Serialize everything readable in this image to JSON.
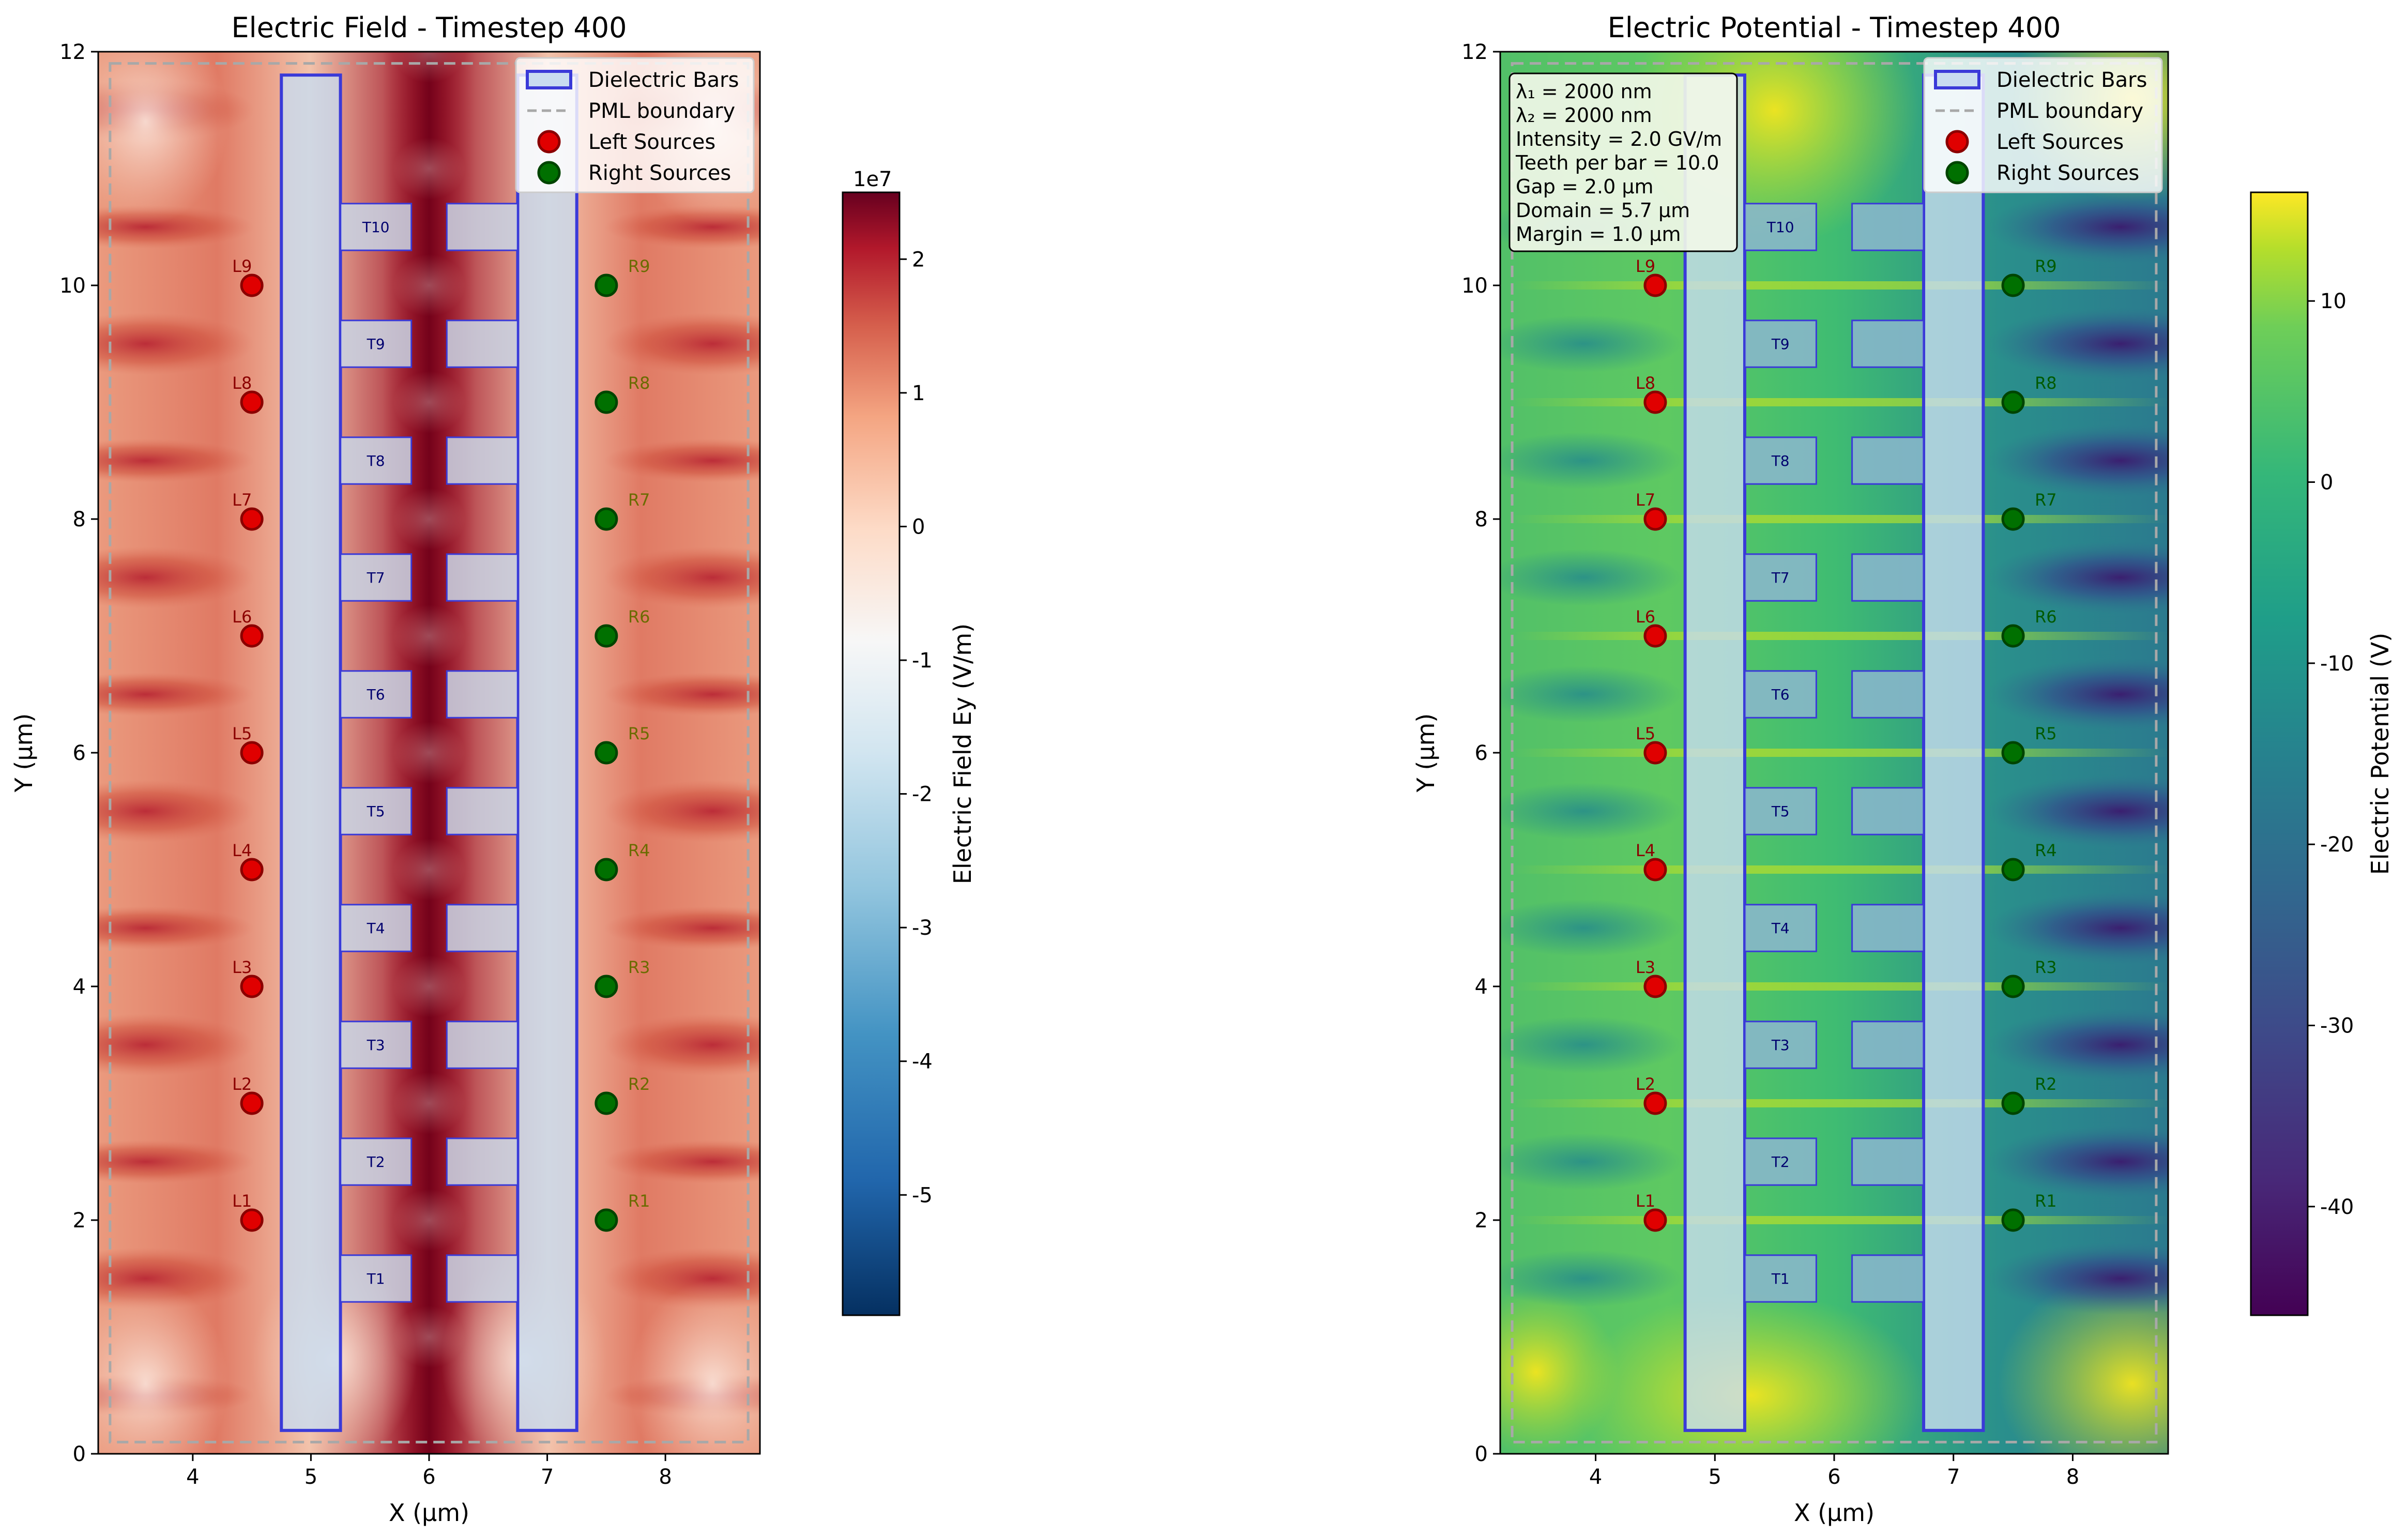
{
  "chart_data": [
    {
      "type": "heatmap",
      "title": "Electric Field - Timestep 400",
      "xlabel": "X (μm)",
      "ylabel": "Y (μm)",
      "xlim": [
        3.2,
        8.8
      ],
      "ylim": [
        0,
        12
      ],
      "xticks": [
        4,
        5,
        6,
        7,
        8
      ],
      "yticks": [
        0,
        2,
        4,
        6,
        8,
        10,
        12
      ],
      "colormap": "RdBu_r",
      "colorbar": {
        "label": "Electric Field Ey (V/m)",
        "range": [
          -5.9,
          2.5
        ],
        "ticks": [
          2,
          1,
          0,
          -1,
          -2,
          -3,
          -4,
          -5
        ],
        "exponent": "1e7"
      },
      "legend": {
        "placement": "top-right",
        "entries": [
          "Dielectric Bars",
          "PML boundary",
          "Left Sources",
          "Right Sources"
        ]
      }
    },
    {
      "type": "heatmap",
      "title": "Electric Potential - Timestep 400",
      "xlabel": "X (μm)",
      "ylabel": "Y (μm)",
      "xlim": [
        3.2,
        8.8
      ],
      "ylim": [
        0,
        12
      ],
      "xticks": [
        4,
        5,
        6,
        7,
        8
      ],
      "yticks": [
        0,
        2,
        4,
        6,
        8,
        10,
        12
      ],
      "colormap": "viridis",
      "colorbar": {
        "label": "Electric Potential (V)",
        "range": [
          -46,
          16
        ],
        "ticks": [
          10,
          0,
          -10,
          -20,
          -30,
          -40
        ]
      },
      "legend": {
        "placement": "top-right",
        "entries": [
          "Dielectric Bars",
          "PML boundary",
          "Left Sources",
          "Right Sources"
        ]
      },
      "info_box": [
        "λ₁ = 2000 nm",
        "λ₂ = 2000 nm",
        "Intensity = 2.0 GV/m",
        "Teeth per bar = 10.0",
        "Gap = 2.0 μm",
        "Domain = 5.7 μm",
        "Margin = 1.0 μm"
      ]
    }
  ],
  "geometry": {
    "pml_rect": [
      3.3,
      0.1,
      8.7,
      11.9
    ],
    "bars": [
      [
        4.75,
        5.25,
        0.2,
        11.8
      ],
      [
        6.75,
        7.25,
        0.2,
        11.8
      ]
    ],
    "tooth_x_left": [
      5.25,
      5.85
    ],
    "tooth_x_right": [
      6.15,
      6.75
    ],
    "tooth_height": 0.4,
    "teeth": [
      {
        "label": "T1",
        "y": 1.5
      },
      {
        "label": "T2",
        "y": 2.5
      },
      {
        "label": "T3",
        "y": 3.5
      },
      {
        "label": "T4",
        "y": 4.5
      },
      {
        "label": "T5",
        "y": 5.5
      },
      {
        "label": "T6",
        "y": 6.5
      },
      {
        "label": "T7",
        "y": 7.5
      },
      {
        "label": "T8",
        "y": 8.5
      },
      {
        "label": "T9",
        "y": 9.5
      },
      {
        "label": "T10",
        "y": 10.5
      }
    ],
    "left_sources": [
      {
        "label": "L1",
        "x": 4.5,
        "y": 2
      },
      {
        "label": "L2",
        "x": 4.5,
        "y": 3
      },
      {
        "label": "L3",
        "x": 4.5,
        "y": 4
      },
      {
        "label": "L4",
        "x": 4.5,
        "y": 5
      },
      {
        "label": "L5",
        "x": 4.5,
        "y": 6
      },
      {
        "label": "L6",
        "x": 4.5,
        "y": 7
      },
      {
        "label": "L7",
        "x": 4.5,
        "y": 8
      },
      {
        "label": "L8",
        "x": 4.5,
        "y": 9
      },
      {
        "label": "L9",
        "x": 4.5,
        "y": 10
      }
    ],
    "right_sources": [
      {
        "label": "R1",
        "x": 7.5,
        "y": 2
      },
      {
        "label": "R2",
        "x": 7.5,
        "y": 3
      },
      {
        "label": "R3",
        "x": 7.5,
        "y": 4
      },
      {
        "label": "R4",
        "x": 7.5,
        "y": 5
      },
      {
        "label": "R5",
        "x": 7.5,
        "y": 6
      },
      {
        "label": "R6",
        "x": 7.5,
        "y": 7
      },
      {
        "label": "R7",
        "x": 7.5,
        "y": 8
      },
      {
        "label": "R8",
        "x": 7.5,
        "y": 9
      },
      {
        "label": "R9",
        "x": 7.5,
        "y": 10
      }
    ]
  },
  "colors": {
    "bar_edge": "#3a3ad8",
    "bar_fill": "#c8dcf0",
    "left_source": "#e00000",
    "left_source_edge": "#8b0000",
    "left_label": "#8b0000",
    "right_source": "#007000",
    "right_source_edge": "#004400",
    "right_label_field": "#6b6b00",
    "right_label_potential": "#005a00",
    "tooth_label": "#00006e",
    "pml": "#a8a8a8"
  }
}
